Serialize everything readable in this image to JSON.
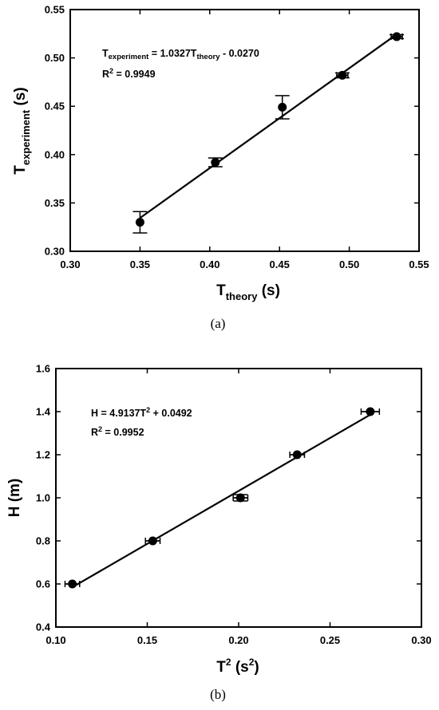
{
  "chart_data": [
    {
      "type": "scatter",
      "panel_label": "(a)",
      "xlabel": {
        "main": "T",
        "sub": "theory",
        "unit": " (s)"
      },
      "ylabel": {
        "main": "T",
        "sub": "experiment",
        "unit": " (s)"
      },
      "xlim": [
        0.3,
        0.55
      ],
      "ylim": [
        0.3,
        0.55
      ],
      "xticks": [
        "0.30",
        "0.35",
        "0.40",
        "0.45",
        "0.50",
        "0.55"
      ],
      "yticks": [
        "0.30",
        "0.35",
        "0.40",
        "0.45",
        "0.50",
        "0.55"
      ],
      "equation": {
        "lhs": "T",
        "lhs_sub": "experiment",
        "middle": " = 1.0327T",
        "middle_sub": "theory",
        "rhs": " - 0.0270"
      },
      "r2": {
        "label": "R",
        "exp": "2",
        "value": " = 0.9949"
      },
      "fit": {
        "slope": 1.0327,
        "intercept": -0.027,
        "x_range": [
          0.35,
          0.535
        ]
      },
      "points": [
        {
          "x": 0.35,
          "y": 0.33,
          "yerr": 0.011,
          "xerr": 0.0
        },
        {
          "x": 0.404,
          "y": 0.392,
          "yerr": 0.0045,
          "xerr": 0.0
        },
        {
          "x": 0.452,
          "y": 0.449,
          "yerr": 0.012,
          "xerr": 0.0
        },
        {
          "x": 0.495,
          "y": 0.482,
          "yerr": 0.0025,
          "xerr": 0.004
        },
        {
          "x": 0.534,
          "y": 0.522,
          "yerr": 0.002,
          "xerr": 0.004
        }
      ],
      "grid": false
    },
    {
      "type": "scatter",
      "panel_label": "(b)",
      "xlabel": {
        "main": "T",
        "sup": "2",
        "unit_main": " (s",
        "unit_sup": "2",
        "unit_end": ")"
      },
      "ylabel": {
        "main": "H (m)"
      },
      "xlim": [
        0.1,
        0.3
      ],
      "ylim": [
        0.4,
        1.6
      ],
      "xticks": [
        "0.10",
        "0.15",
        "0.20",
        "0.25",
        "0.30"
      ],
      "yticks": [
        "0.4",
        "0.6",
        "0.8",
        "1.0",
        "1.2",
        "1.4",
        "1.6"
      ],
      "equation": {
        "lhs": "H = 4.9137T",
        "lhs_sup": "2",
        "rhs": " + 0.0492"
      },
      "r2": {
        "label": "R",
        "exp": "2",
        "value": " = 0.9952"
      },
      "fit": {
        "slope": 4.9137,
        "intercept": 0.0492,
        "x_range": [
          0.109,
          0.272
        ]
      },
      "points": [
        {
          "x": 0.109,
          "y": 0.6,
          "xerr": 0.004,
          "yerr": 0.0
        },
        {
          "x": 0.153,
          "y": 0.8,
          "xerr": 0.004,
          "yerr": 0.0
        },
        {
          "x": 0.201,
          "y": 1.0,
          "xerr": 0.004,
          "yerr": 0.015
        },
        {
          "x": 0.232,
          "y": 1.2,
          "xerr": 0.004,
          "yerr": 0.0
        },
        {
          "x": 0.272,
          "y": 1.4,
          "xerr": 0.005,
          "yerr": 0.0
        }
      ],
      "grid": false
    }
  ]
}
